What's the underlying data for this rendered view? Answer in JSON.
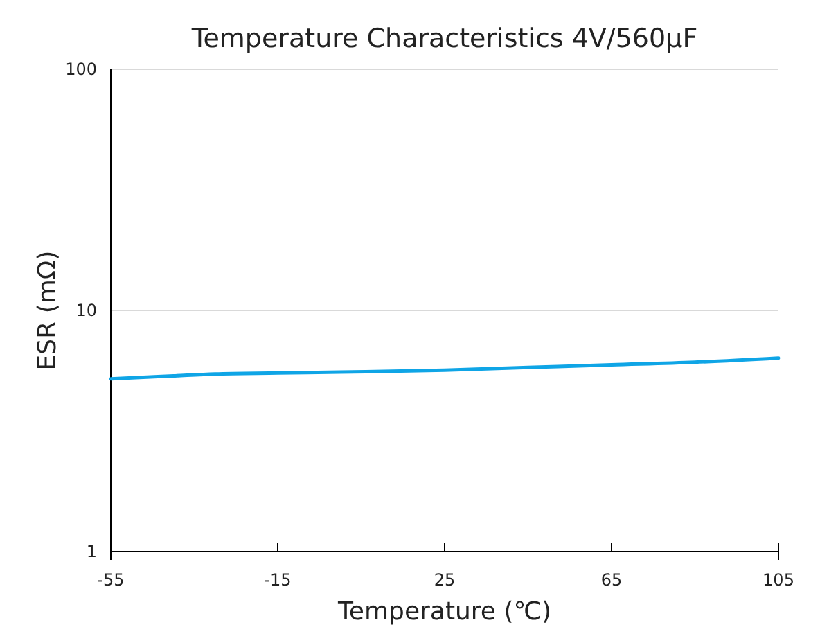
{
  "chart_data": {
    "type": "line",
    "title": "Temperature Characteristics 4V/560μF",
    "xlabel": "Temperature (℃)",
    "ylabel": "ESR (mΩ)",
    "x": [
      -55,
      -40,
      -30,
      -15,
      0,
      25,
      45,
      65,
      85,
      105
    ],
    "series": [
      {
        "color": "#0fa5e6",
        "values": [
          5.2,
          5.35,
          5.45,
          5.5,
          5.55,
          5.65,
          5.8,
          5.95,
          6.1,
          6.35
        ]
      }
    ],
    "xlim": [
      -55,
      105
    ],
    "xticks": [
      -55,
      -15,
      25,
      65,
      105
    ],
    "ylim": [
      1,
      100
    ],
    "yticks": [
      1,
      10,
      100
    ],
    "log": true,
    "grid": "y"
  }
}
